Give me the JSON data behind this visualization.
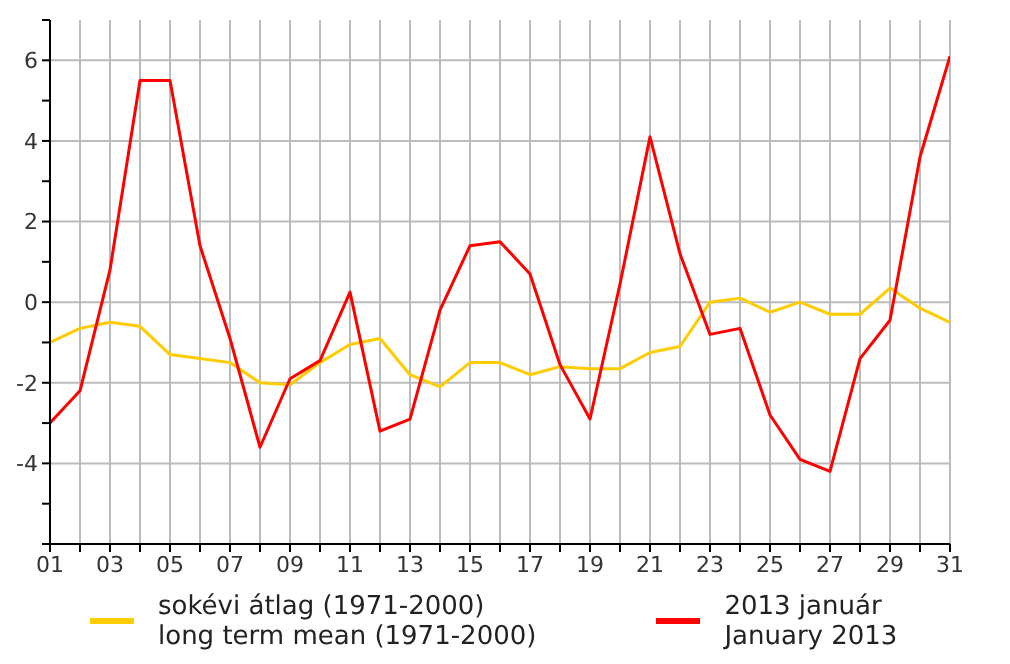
{
  "chart_data": {
    "type": "line",
    "x": [
      1,
      2,
      3,
      4,
      5,
      6,
      7,
      8,
      9,
      10,
      11,
      12,
      13,
      14,
      15,
      16,
      17,
      18,
      19,
      20,
      21,
      22,
      23,
      24,
      25,
      26,
      27,
      28,
      29,
      30,
      31
    ],
    "series": [
      {
        "name": "sokévi átlag (1971-2000)\nlong term mean (1971-2000)",
        "color": "#ffcc00",
        "values": [
          -1.0,
          -0.65,
          -0.5,
          -0.6,
          -1.3,
          -1.4,
          -1.5,
          -2.0,
          -2.05,
          -1.5,
          -1.05,
          -0.9,
          -1.8,
          -2.1,
          -1.5,
          -1.5,
          -1.8,
          -1.6,
          -1.65,
          -1.65,
          -1.25,
          -1.1,
          0.0,
          0.1,
          -0.25,
          0.0,
          -0.3,
          -0.3,
          0.35,
          -0.15,
          -0.5
        ]
      },
      {
        "name": "2013 január\nJanuary 2013",
        "color": "#ff0000",
        "values": [
          -3.0,
          -2.2,
          0.8,
          5.5,
          5.5,
          1.4,
          -0.9,
          -3.6,
          -1.9,
          -1.45,
          0.25,
          -3.2,
          -2.9,
          -0.2,
          1.4,
          1.5,
          0.7,
          -1.55,
          -2.9,
          0.45,
          4.1,
          1.2,
          -0.8,
          -0.65,
          -2.8,
          -3.9,
          -4.2,
          -1.4,
          -0.45,
          3.6,
          6.1
        ]
      }
    ],
    "xlim": [
      1,
      31
    ],
    "xticks": [
      {
        "value": 1,
        "label": "01"
      },
      {
        "value": 2,
        "label": null
      },
      {
        "value": 3,
        "label": "03"
      },
      {
        "value": 4,
        "label": null
      },
      {
        "value": 5,
        "label": "05"
      },
      {
        "value": 6,
        "label": null
      },
      {
        "value": 7,
        "label": "07"
      },
      {
        "value": 8,
        "label": null
      },
      {
        "value": 9,
        "label": "09"
      },
      {
        "value": 10,
        "label": null
      },
      {
        "value": 11,
        "label": "11"
      },
      {
        "value": 12,
        "label": null
      },
      {
        "value": 13,
        "label": "13"
      },
      {
        "value": 14,
        "label": null
      },
      {
        "value": 15,
        "label": "15"
      },
      {
        "value": 16,
        "label": null
      },
      {
        "value": 17,
        "label": "17"
      },
      {
        "value": 18,
        "label": null
      },
      {
        "value": 19,
        "label": "19"
      },
      {
        "value": 20,
        "label": null
      },
      {
        "value": 21,
        "label": "21"
      },
      {
        "value": 22,
        "label": null
      },
      {
        "value": 23,
        "label": "23"
      },
      {
        "value": 24,
        "label": null
      },
      {
        "value": 25,
        "label": "25"
      },
      {
        "value": 26,
        "label": null
      },
      {
        "value": 27,
        "label": "27"
      },
      {
        "value": 28,
        "label": null
      },
      {
        "value": 29,
        "label": "29"
      },
      {
        "value": 30,
        "label": null
      },
      {
        "value": 31,
        "label": "31"
      }
    ],
    "ylim": [
      -6,
      7
    ],
    "yticks": [
      {
        "value": -6,
        "label": null
      },
      {
        "value": -5,
        "label": null
      },
      -4,
      {
        "value": -3,
        "label": null
      },
      -2,
      {
        "value": -1,
        "label": null
      },
      0,
      {
        "value": 1,
        "label": null
      },
      2,
      {
        "value": 3,
        "label": null
      },
      4,
      {
        "value": 5,
        "label": null
      },
      6,
      {
        "value": 7,
        "label": null
      }
    ],
    "grid": true,
    "legend": "bottom",
    "marker": "none",
    "line_style": "solid"
  }
}
